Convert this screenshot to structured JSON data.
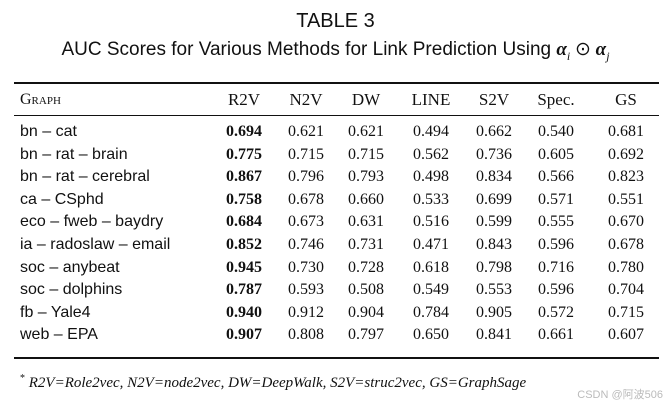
{
  "header": {
    "label": "TABLE 3",
    "caption": "AUC Scores for Various Methods for Link Prediction Using",
    "formula": [
      "α",
      "i",
      "⊙",
      "α",
      "j"
    ]
  },
  "table": {
    "columns": [
      "Graph",
      "R2V",
      "N2V",
      "DW",
      "LINE",
      "S2V",
      "Spec.",
      "GS"
    ],
    "rows": [
      [
        "bn – cat",
        "0.694",
        "0.621",
        "0.621",
        "0.494",
        "0.662",
        "0.540",
        "0.681"
      ],
      [
        "bn – rat – brain",
        "0.775",
        "0.715",
        "0.715",
        "0.562",
        "0.736",
        "0.605",
        "0.692"
      ],
      [
        "bn – rat – cerebral",
        "0.867",
        "0.796",
        "0.793",
        "0.498",
        "0.834",
        "0.566",
        "0.823"
      ],
      [
        "ca – CSphd",
        "0.758",
        "0.678",
        "0.660",
        "0.533",
        "0.699",
        "0.571",
        "0.551"
      ],
      [
        "eco – fweb – baydry",
        "0.684",
        "0.673",
        "0.631",
        "0.516",
        "0.599",
        "0.555",
        "0.670"
      ],
      [
        "ia – radoslaw – email",
        "0.852",
        "0.746",
        "0.731",
        "0.471",
        "0.843",
        "0.596",
        "0.678"
      ],
      [
        "soc – anybeat",
        "0.945",
        "0.730",
        "0.728",
        "0.618",
        "0.798",
        "0.716",
        "0.780"
      ],
      [
        "soc – dolphins",
        "0.787",
        "0.593",
        "0.508",
        "0.549",
        "0.553",
        "0.596",
        "0.704"
      ],
      [
        "fb – Yale4",
        "0.940",
        "0.912",
        "0.904",
        "0.784",
        "0.905",
        "0.572",
        "0.715"
      ],
      [
        "web – EPA",
        "0.907",
        "0.808",
        "0.797",
        "0.650",
        "0.841",
        "0.661",
        "0.607"
      ]
    ]
  },
  "footnote": {
    "marker": "*",
    "text": "R2V=Role2vec, N2V=node2vec, DW=DeepWalk, S2V=struc2vec, GS=GraphSage"
  },
  "watermark": "CSDN @阿波506"
}
